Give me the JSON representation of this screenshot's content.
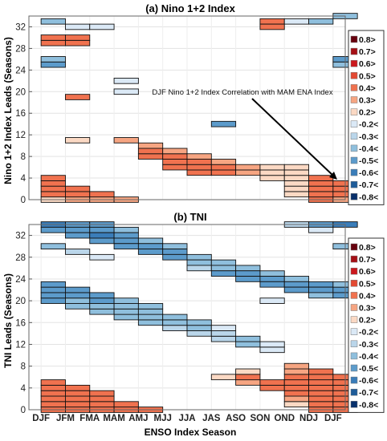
{
  "figure": {
    "xlabel": "ENSO Index Season",
    "x_tick_labels": [
      "DJF",
      "JFM",
      "FMA",
      "MAM",
      "AMJ",
      "MJJ",
      "JJA",
      "JAS",
      "ASO",
      "SON",
      "OND",
      "NDJ",
      "DJF"
    ],
    "legend_labels": [
      "0.8>",
      "0.7>",
      "0.6>",
      "0.5>",
      "0.4>",
      "0.3>",
      "0.2>",
      "-0.2<",
      "-0.3<",
      "-0.4<",
      "-0.5<",
      "-0.6<",
      "-0.7<",
      "-0.8<"
    ],
    "legend_colors": [
      "#67000d",
      "#a50f15",
      "#cb181d",
      "#e34a33",
      "#f0724f",
      "#f6a582",
      "#fbd9c4",
      "#dbe9f6",
      "#bad6ea",
      "#8fbfdd",
      "#5c9bcb",
      "#3a7db9",
      "#1f5c99",
      "#08306b"
    ]
  },
  "chart_data": [
    {
      "type": "heatmap",
      "title": "(a) Nino 1+2 Index",
      "xlabel": "ENSO Index Season",
      "ylabel": "Nino 1+2 Index Leads (Seasons)",
      "ylim": [
        0,
        34
      ],
      "yticks": [
        0,
        4,
        8,
        12,
        16,
        20,
        24,
        28,
        32
      ],
      "annotation": "DJF Nino 1+2 Index Correlation with MAM ENA Index",
      "cells": [
        [
          1,
          0,
          0.2
        ],
        [
          1,
          1,
          0.4
        ],
        [
          1,
          2,
          0.4
        ],
        [
          1,
          3,
          0.4
        ],
        [
          1,
          4,
          0.4
        ],
        [
          2,
          0,
          0.3
        ],
        [
          2,
          1,
          0.4
        ],
        [
          2,
          2,
          0.4
        ],
        [
          3,
          0,
          0.3
        ],
        [
          3,
          1,
          0.4
        ],
        [
          4,
          0,
          0.3
        ],
        [
          4,
          11,
          0.3
        ],
        [
          5,
          8,
          0.4
        ],
        [
          5,
          9,
          0.4
        ],
        [
          5,
          10,
          0.3
        ],
        [
          6,
          6,
          0.4
        ],
        [
          6,
          7,
          0.4
        ],
        [
          6,
          8,
          0.4
        ],
        [
          6,
          9,
          0.3
        ],
        [
          7,
          5,
          0.4
        ],
        [
          7,
          6,
          0.4
        ],
        [
          7,
          7,
          0.4
        ],
        [
          7,
          8,
          0.3
        ],
        [
          8,
          5,
          0.4
        ],
        [
          8,
          6,
          0.4
        ],
        [
          8,
          7,
          0.3
        ],
        [
          9,
          5,
          0.3
        ],
        [
          9,
          6,
          0.3
        ],
        [
          10,
          4,
          0.2
        ],
        [
          10,
          5,
          0.2
        ],
        [
          10,
          6,
          0.2
        ],
        [
          11,
          1,
          0.2
        ],
        [
          11,
          2,
          0.2
        ],
        [
          11,
          3,
          0.2
        ],
        [
          11,
          4,
          0.2
        ],
        [
          11,
          5,
          0.2
        ],
        [
          11,
          6,
          0.2
        ],
        [
          12,
          0,
          0.4
        ],
        [
          12,
          1,
          0.4
        ],
        [
          12,
          2,
          0.4
        ],
        [
          12,
          3,
          0.4
        ],
        [
          12,
          4,
          0.4
        ],
        [
          13,
          0,
          0.3
        ],
        [
          13,
          1,
          0.4
        ],
        [
          13,
          2,
          0.4
        ],
        [
          13,
          3,
          0.4
        ],
        [
          13,
          25,
          -0.4
        ],
        [
          13,
          26,
          -0.5
        ],
        [
          13,
          34,
          -0.4
        ],
        [
          10,
          33,
          0.4
        ],
        [
          10,
          32,
          0.4
        ],
        [
          11,
          33,
          -0.2
        ],
        [
          12,
          33,
          -0.4
        ],
        [
          1,
          29,
          0.4
        ],
        [
          1,
          30,
          0.4
        ],
        [
          1,
          33,
          -0.4
        ],
        [
          1,
          25,
          -0.5
        ],
        [
          1,
          26,
          -0.4
        ],
        [
          2,
          29,
          0.4
        ],
        [
          2,
          30,
          0.4
        ],
        [
          2,
          32,
          -0.2
        ],
        [
          3,
          32,
          -0.2
        ],
        [
          4,
          22,
          -0.2
        ],
        [
          4,
          20,
          -0.2
        ],
        [
          2,
          19,
          0.4
        ],
        [
          2,
          11,
          0.2
        ],
        [
          8,
          14,
          -0.5
        ]
      ]
    },
    {
      "type": "heatmap",
      "title": "(b) TNI",
      "xlabel": "ENSO Index Season",
      "ylabel": "TNI Leads (Seasons)",
      "ylim": [
        0,
        34
      ],
      "yticks": [
        0,
        4,
        8,
        12,
        16,
        20,
        24,
        28,
        32
      ],
      "cells": [
        [
          1,
          0,
          0.4
        ],
        [
          1,
          1,
          0.4
        ],
        [
          1,
          2,
          0.4
        ],
        [
          1,
          3,
          0.4
        ],
        [
          1,
          4,
          0.4
        ],
        [
          1,
          5,
          0.4
        ],
        [
          2,
          0,
          0.4
        ],
        [
          2,
          1,
          0.4
        ],
        [
          2,
          2,
          0.4
        ],
        [
          2,
          3,
          0.4
        ],
        [
          2,
          4,
          0.4
        ],
        [
          3,
          0,
          0.4
        ],
        [
          3,
          1,
          0.4
        ],
        [
          3,
          2,
          0.4
        ],
        [
          3,
          3,
          0.4
        ],
        [
          4,
          0,
          0.4
        ],
        [
          4,
          1,
          0.4
        ],
        [
          5,
          0,
          0.4
        ],
        [
          8,
          6,
          0.2
        ],
        [
          9,
          5,
          0.3
        ],
        [
          9,
          6,
          0.4
        ],
        [
          9,
          7,
          0.2
        ],
        [
          10,
          4,
          0.4
        ],
        [
          10,
          5,
          0.4
        ],
        [
          10,
          20,
          -0.2
        ],
        [
          11,
          1,
          0.2
        ],
        [
          11,
          2,
          0.3
        ],
        [
          11,
          3,
          0.4
        ],
        [
          11,
          4,
          0.4
        ],
        [
          11,
          5,
          0.4
        ],
        [
          11,
          6,
          0.4
        ],
        [
          11,
          7,
          0.3
        ],
        [
          11,
          8,
          0.3
        ],
        [
          12,
          0,
          0.4
        ],
        [
          12,
          1,
          0.4
        ],
        [
          12,
          2,
          0.4
        ],
        [
          12,
          3,
          0.4
        ],
        [
          12,
          4,
          0.4
        ],
        [
          12,
          5,
          0.4
        ],
        [
          12,
          6,
          0.4
        ],
        [
          12,
          7,
          0.4
        ],
        [
          13,
          0,
          0.4
        ],
        [
          13,
          1,
          0.4
        ],
        [
          13,
          2,
          0.4
        ],
        [
          13,
          3,
          0.4
        ],
        [
          13,
          4,
          0.4
        ],
        [
          13,
          5,
          0.4
        ],
        [
          13,
          6,
          0.4
        ],
        [
          1,
          20,
          -0.5
        ],
        [
          1,
          21,
          -0.5
        ],
        [
          1,
          22,
          -0.5
        ],
        [
          1,
          23,
          -0.5
        ],
        [
          2,
          19,
          -0.4
        ],
        [
          2,
          20,
          -0.4
        ],
        [
          2,
          21,
          -0.5
        ],
        [
          2,
          22,
          -0.5
        ],
        [
          3,
          18,
          -0.4
        ],
        [
          3,
          19,
          -0.4
        ],
        [
          3,
          20,
          -0.5
        ],
        [
          3,
          21,
          -0.5
        ],
        [
          4,
          17,
          -0.4
        ],
        [
          4,
          18,
          -0.4
        ],
        [
          4,
          19,
          -0.4
        ],
        [
          4,
          20,
          -0.4
        ],
        [
          5,
          16,
          -0.4
        ],
        [
          5,
          17,
          -0.4
        ],
        [
          5,
          18,
          -0.4
        ],
        [
          5,
          19,
          -0.4
        ],
        [
          6,
          15,
          -0.3
        ],
        [
          6,
          16,
          -0.4
        ],
        [
          6,
          17,
          -0.4
        ],
        [
          7,
          14,
          -0.3
        ],
        [
          7,
          15,
          -0.4
        ],
        [
          7,
          16,
          -0.4
        ],
        [
          8,
          13,
          -0.3
        ],
        [
          8,
          14,
          -0.3
        ],
        [
          8,
          15,
          -0.2
        ],
        [
          9,
          12,
          -0.4
        ],
        [
          9,
          13,
          -0.4
        ],
        [
          10,
          11,
          -0.2
        ],
        [
          10,
          12,
          -0.2
        ],
        [
          1,
          34,
          -0.6
        ],
        [
          1,
          33,
          -0.5
        ],
        [
          1,
          30,
          -0.4
        ],
        [
          2,
          34,
          -0.5
        ],
        [
          2,
          33,
          -0.5
        ],
        [
          2,
          32,
          -0.5
        ],
        [
          2,
          29,
          -0.3
        ],
        [
          3,
          34,
          -0.5
        ],
        [
          3,
          33,
          -0.5
        ],
        [
          3,
          32,
          -0.6
        ],
        [
          3,
          31,
          -0.5
        ],
        [
          3,
          28,
          -0.2
        ],
        [
          4,
          33,
          -0.4
        ],
        [
          4,
          32,
          -0.5
        ],
        [
          4,
          31,
          -0.5
        ],
        [
          4,
          30,
          -0.5
        ],
        [
          5,
          31,
          -0.4
        ],
        [
          5,
          30,
          -0.5
        ],
        [
          5,
          29,
          -0.5
        ],
        [
          6,
          30,
          -0.4
        ],
        [
          6,
          29,
          -0.5
        ],
        [
          6,
          28,
          -0.5
        ],
        [
          7,
          28,
          -0.4
        ],
        [
          7,
          27,
          -0.4
        ],
        [
          7,
          26,
          -0.3
        ],
        [
          8,
          27,
          -0.4
        ],
        [
          8,
          26,
          -0.4
        ],
        [
          8,
          25,
          -0.5
        ],
        [
          9,
          26,
          -0.4
        ],
        [
          9,
          25,
          -0.5
        ],
        [
          9,
          24,
          -0.5
        ],
        [
          10,
          25,
          -0.4
        ],
        [
          10,
          24,
          -0.5
        ],
        [
          10,
          23,
          -0.5
        ],
        [
          11,
          24,
          -0.4
        ],
        [
          11,
          23,
          -0.5
        ],
        [
          11,
          22,
          -0.5
        ],
        [
          11,
          34,
          -0.3
        ],
        [
          12,
          23,
          -0.5
        ],
        [
          12,
          22,
          -0.5
        ],
        [
          12,
          21,
          -0.4
        ],
        [
          12,
          34,
          -0.5
        ],
        [
          12,
          33,
          -0.2
        ],
        [
          13,
          22,
          -0.5
        ],
        [
          13,
          21,
          -0.5
        ],
        [
          13,
          23,
          -0.4
        ],
        [
          13,
          34,
          -0.6
        ],
        [
          13,
          30,
          -0.4
        ]
      ]
    }
  ]
}
